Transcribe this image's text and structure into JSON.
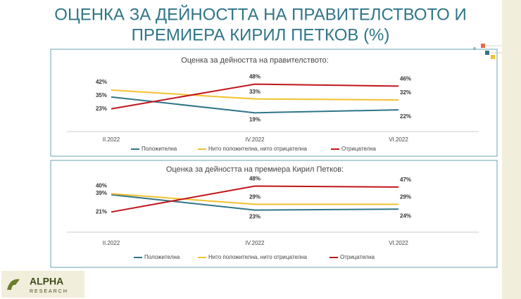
{
  "title": [
    "ОЦЕНКА ЗА ДЕЙНОСТТА НА ПРАВИТЕЛСТВОТО И",
    "ПРЕМИЕРА КИРИЛ ПЕТКОВ (%)"
  ],
  "logo": {
    "name": "ALPHA",
    "sub": "RESEARCH"
  },
  "chart_data": [
    {
      "type": "line",
      "title": "Оценка за дейността на правителството:",
      "categories": [
        "II.2022",
        "IV.2022",
        "VI.2022"
      ],
      "ylim": [
        0,
        52
      ],
      "series": [
        {
          "name": "Положителна",
          "color": "#2f7588",
          "values": [
            35,
            19,
            22
          ],
          "value_labels": [
            "35%",
            "19%",
            "22%"
          ]
        },
        {
          "name": "Нито положителна, нито отрицателна",
          "color": "#f2c12e",
          "values": [
            42,
            33,
            32
          ],
          "value_labels": [
            "42%",
            "33%",
            "32%"
          ]
        },
        {
          "name": "Отрицателна",
          "color": "#c0161c",
          "values": [
            23,
            48,
            46
          ],
          "value_labels": [
            "23%",
            "48%",
            "46%"
          ]
        }
      ]
    },
    {
      "type": "line",
      "title": "Оценка за дейността на премиера Кирил Петков:",
      "categories": [
        "II.2022",
        "IV.2022",
        "VI.2022"
      ],
      "ylim": [
        0,
        52
      ],
      "series": [
        {
          "name": "Положителна",
          "color": "#2f7588",
          "values": [
            39,
            23,
            24
          ],
          "value_labels": [
            "39%",
            "23%",
            "24%"
          ]
        },
        {
          "name": "Нито положителна, нито отрицателна",
          "color": "#f2c12e",
          "values": [
            40,
            29,
            29
          ],
          "value_labels": [
            "40%",
            "29%",
            "29%"
          ]
        },
        {
          "name": "Отрицателна",
          "color": "#c0161c",
          "values": [
            21,
            48,
            47
          ],
          "value_labels": [
            "21%",
            "48%",
            "47%"
          ]
        }
      ]
    }
  ]
}
